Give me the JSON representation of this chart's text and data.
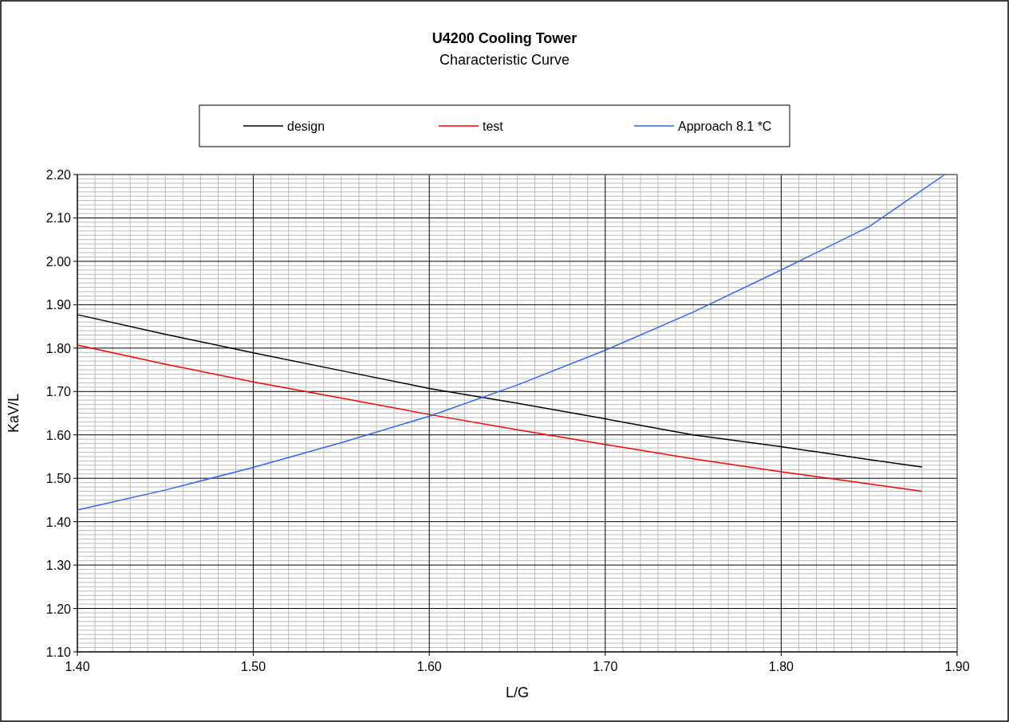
{
  "chart_data": {
    "type": "line",
    "title": "U4200 Cooling Tower",
    "subtitle": "Characteristic Curve",
    "xlabel": "L/G",
    "ylabel": "KaV/L",
    "series": [
      {
        "name": "design",
        "color": "#000000",
        "x": [
          1.4,
          1.45,
          1.5,
          1.55,
          1.6,
          1.65,
          1.7,
          1.75,
          1.8,
          1.85,
          1.88
        ],
        "values": [
          1.877,
          1.832,
          1.789,
          1.748,
          1.707,
          1.673,
          1.637,
          1.6,
          1.573,
          1.543,
          1.526
        ]
      },
      {
        "name": "test",
        "color": "#ff0000",
        "x": [
          1.4,
          1.45,
          1.5,
          1.55,
          1.6,
          1.65,
          1.7,
          1.75,
          1.8,
          1.85,
          1.88
        ],
        "values": [
          1.807,
          1.763,
          1.722,
          1.685,
          1.647,
          1.612,
          1.578,
          1.545,
          1.515,
          1.487,
          1.47
        ]
      },
      {
        "name": "Approach 8.1 *C",
        "color": "#3366ff",
        "x": [
          1.4,
          1.45,
          1.5,
          1.55,
          1.6,
          1.65,
          1.7,
          1.75,
          1.8,
          1.85,
          1.893
        ],
        "values": [
          1.427,
          1.473,
          1.525,
          1.582,
          1.643,
          1.715,
          1.795,
          1.883,
          1.98,
          2.08,
          2.2
        ]
      }
    ],
    "xlim": [
      1.4,
      1.9
    ],
    "xticks": [
      {
        "value": 1.4,
        "label": "1.40"
      },
      {
        "value": 1.5,
        "label": "1.50"
      },
      {
        "value": 1.6,
        "label": "1.60"
      },
      {
        "value": 1.7,
        "label": "1.70"
      },
      {
        "value": 1.8,
        "label": "1.80"
      },
      {
        "value": 1.9,
        "label": "1.90"
      }
    ],
    "ylim": [
      1.1,
      2.2
    ],
    "yticks": [
      {
        "value": 1.1,
        "label": "1.10"
      },
      {
        "value": 1.2,
        "label": "1.20"
      },
      {
        "value": 1.3,
        "label": "1.30"
      },
      {
        "value": 1.4,
        "label": "1.40"
      },
      {
        "value": 1.5,
        "label": "1.50"
      },
      {
        "value": 1.6,
        "label": "1.60"
      },
      {
        "value": 1.7,
        "label": "1.70"
      },
      {
        "value": 1.8,
        "label": "1.80"
      },
      {
        "value": 1.9,
        "label": "1.90"
      },
      {
        "value": 2.0,
        "label": "2.00"
      },
      {
        "value": 2.1,
        "label": "2.10"
      },
      {
        "value": 2.2,
        "label": "2.20"
      }
    ],
    "grid": true,
    "legend": "top",
    "marker": "none",
    "line_style": "solid"
  }
}
